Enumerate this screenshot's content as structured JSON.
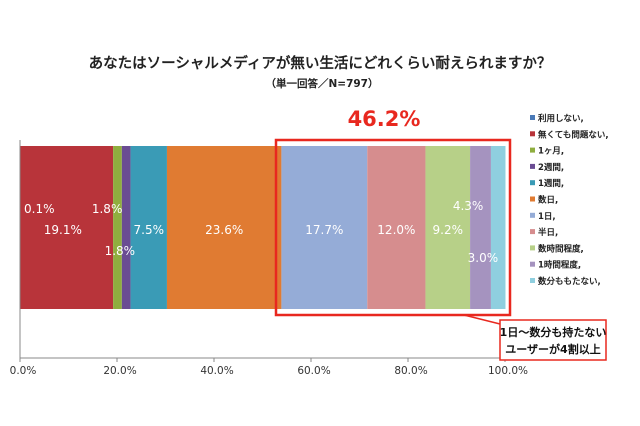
{
  "chart_data": {
    "type": "bar",
    "orientation": "horizontal-stacked-100",
    "title": "あなたはソーシャルメディアが無い生活にどれくらい耐えられますか？",
    "subtitle": "（単一回答／N=797）",
    "xlim": [
      0,
      100
    ],
    "x_ticks": [
      "0.0%",
      "20.0%",
      "40.0%",
      "60.0%",
      "80.0%",
      "100.0%"
    ],
    "series": [
      {
        "name": "利用しない,",
        "value": 0.1,
        "label": "0.1%",
        "color": "#4a7ab8"
      },
      {
        "name": "無くても問題ない,",
        "value": 19.1,
        "label": "19.1%",
        "color": "#b8343a"
      },
      {
        "name": "1ヶ月,",
        "value": 1.8,
        "label": "1.8%",
        "color": "#8fae3f"
      },
      {
        "name": "2週間,",
        "value": 1.8,
        "label": "1.8%",
        "color": "#6a4c93"
      },
      {
        "name": "1週間,",
        "value": 7.5,
        "label": "7.5%",
        "color": "#3a9bb6"
      },
      {
        "name": "数日,",
        "value": 23.6,
        "label": "23.6%",
        "color": "#e07b32"
      },
      {
        "name": "1日,",
        "value": 17.7,
        "label": "17.7%",
        "color": "#95acd7"
      },
      {
        "name": "半日,",
        "value": 12.0,
        "label": "12.0%",
        "color": "#d68d8e"
      },
      {
        "name": "数時間程度,",
        "value": 9.2,
        "label": "9.2%",
        "color": "#b7d088"
      },
      {
        "name": "1時間程度,",
        "value": 4.3,
        "label": "4.3%",
        "color": "#a593bf"
      },
      {
        "name": "数分ももたない,",
        "value": 3.0,
        "label": "3.0%",
        "color": "#8fcfdf"
      }
    ],
    "highlight": {
      "text": "46.2%",
      "color": "#e8281f"
    },
    "callout": {
      "line1": "1日～数分も持たない",
      "line2": "ユーザーが4割以上"
    }
  }
}
